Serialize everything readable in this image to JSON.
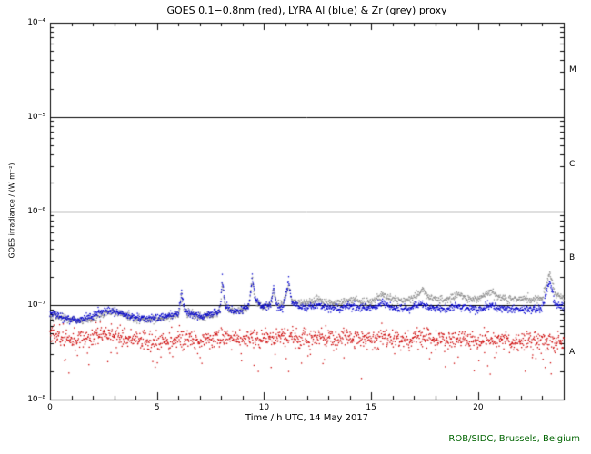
{
  "footer": {
    "credit": "ROB/SIDC, Brussels, Belgium",
    "credit_color": "#006400"
  },
  "chart_data": {
    "type": "scatter",
    "title": "GOES 0.1−0.8nm (red), LYRA Al (blue) & Zr (grey) proxy",
    "xlabel": "Time / h UTC, 14 May 2017",
    "ylabel": "GOES irradiance / (W m⁻²)",
    "x_range": [
      0,
      24
    ],
    "y_log10_range": [
      -8,
      -4
    ],
    "grid": false,
    "x_minor_step": 1,
    "x_major_ticks": [
      {
        "x": 0,
        "label": "0"
      },
      {
        "x": 5,
        "label": "5"
      },
      {
        "x": 10,
        "label": "10"
      },
      {
        "x": 15,
        "label": "15"
      },
      {
        "x": 20,
        "label": "20"
      }
    ],
    "y_ticks": [
      {
        "log10": -8,
        "label": "10⁻⁸"
      },
      {
        "log10": -7,
        "label": "10⁻⁷"
      },
      {
        "log10": -6,
        "label": "10⁻⁶"
      },
      {
        "log10": -5,
        "label": "10⁻⁵"
      },
      {
        "log10": -4,
        "label": "10⁻⁴"
      }
    ],
    "hlines_log10": [
      -5,
      -6,
      -7
    ],
    "flare_classes": [
      {
        "label": "M",
        "log10_range": [
          -5,
          -4
        ]
      },
      {
        "label": "C",
        "log10_range": [
          -6,
          -5
        ]
      },
      {
        "label": "B",
        "log10_range": [
          -7,
          -6
        ]
      },
      {
        "label": "A",
        "log10_range": [
          -8,
          -7
        ]
      }
    ],
    "samples_per_hour": 60,
    "dot_size": 1.3,
    "series": [
      {
        "name": "LYRA Zr proxy",
        "color": "#8f8f8f",
        "noise_sigma_log10": 0.02,
        "points": [
          [
            0,
            7.9e-08
          ],
          [
            0.5,
            7.5e-08
          ],
          [
            1,
            7e-08
          ],
          [
            1.5,
            6.8e-08
          ],
          [
            2,
            7.2e-08
          ],
          [
            2.5,
            8e-08
          ],
          [
            3,
            8.5e-08
          ],
          [
            3.5,
            7.8e-08
          ],
          [
            4,
            7.2e-08
          ],
          [
            4.5,
            7e-08
          ],
          [
            5,
            7.2e-08
          ],
          [
            5.5,
            7.5e-08
          ],
          [
            6.0,
            7.9e-08
          ],
          [
            6.15,
            1.25e-07
          ],
          [
            6.3,
            8.4e-08
          ],
          [
            6.8,
            7.7e-08
          ],
          [
            7.3,
            7.6e-08
          ],
          [
            7.8,
            8e-08
          ],
          [
            7.95,
            8.8e-08
          ],
          [
            8.05,
            1.65e-07
          ],
          [
            8.2,
            9.6e-08
          ],
          [
            8.6,
            8.5e-08
          ],
          [
            9,
            8.9e-08
          ],
          [
            9.3,
            9.6e-08
          ],
          [
            9.45,
            1.9e-07
          ],
          [
            9.6,
            1.1e-07
          ],
          [
            9.9,
            9.7e-08
          ],
          [
            10.3,
            1.02e-07
          ],
          [
            10.45,
            1.42e-07
          ],
          [
            10.6,
            1.03e-07
          ],
          [
            10.9,
            1e-07
          ],
          [
            11.15,
            1.65e-07
          ],
          [
            11.3,
            1.12e-07
          ],
          [
            11.6,
            1.05e-07
          ],
          [
            12,
            1.06e-07
          ],
          [
            12.5,
            1.14e-07
          ],
          [
            13,
            1.05e-07
          ],
          [
            13.5,
            1.06e-07
          ],
          [
            14,
            1.16e-07
          ],
          [
            14.4,
            1.1e-07
          ],
          [
            15,
            1.08e-07
          ],
          [
            15.6,
            1.32e-07
          ],
          [
            15.9,
            1.16e-07
          ],
          [
            16.4,
            1.12e-07
          ],
          [
            16.9,
            1.14e-07
          ],
          [
            17.4,
            1.48e-07
          ],
          [
            17.7,
            1.22e-07
          ],
          [
            18.2,
            1.14e-07
          ],
          [
            18.7,
            1.16e-07
          ],
          [
            19.05,
            1.34e-07
          ],
          [
            19.4,
            1.2e-07
          ],
          [
            20,
            1.14e-07
          ],
          [
            20.6,
            1.44e-07
          ],
          [
            20.9,
            1.22e-07
          ],
          [
            21.4,
            1.14e-07
          ],
          [
            22,
            1.18e-07
          ],
          [
            22.5,
            1.14e-07
          ],
          [
            23,
            1.2e-07
          ],
          [
            23.35,
            2.25e-07
          ],
          [
            23.6,
            1.3e-07
          ],
          [
            24,
            1.22e-07
          ]
        ]
      },
      {
        "name": "LYRA Al proxy",
        "color": "#0000cc",
        "noise_sigma_log10": 0.02,
        "points": [
          [
            0,
            8.2e-08
          ],
          [
            0.3,
            7.9e-08
          ],
          [
            0.8,
            7.1e-08
          ],
          [
            1.3,
            6.9e-08
          ],
          [
            1.8,
            7.4e-08
          ],
          [
            2.3,
            8.3e-08
          ],
          [
            2.7,
            8.9e-08
          ],
          [
            3.2,
            8.5e-08
          ],
          [
            3.7,
            7.7e-08
          ],
          [
            4.2,
            7.3e-08
          ],
          [
            4.7,
            7.3e-08
          ],
          [
            5.2,
            7.6e-08
          ],
          [
            5.7,
            7.9e-08
          ],
          [
            6.0,
            8.2e-08
          ],
          [
            6.15,
            1.35e-07
          ],
          [
            6.3,
            8.8e-08
          ],
          [
            6.7,
            7.9e-08
          ],
          [
            7.2,
            7.8e-08
          ],
          [
            7.6,
            8.1e-08
          ],
          [
            7.95,
            9e-08
          ],
          [
            8.05,
            1.85e-07
          ],
          [
            8.2,
            1e-07
          ],
          [
            8.5,
            8.6e-08
          ],
          [
            8.9,
            8.9e-08
          ],
          [
            9.3,
            9.8e-08
          ],
          [
            9.45,
            2.1e-07
          ],
          [
            9.6,
            1.15e-07
          ],
          [
            9.9,
            9.6e-08
          ],
          [
            10.3,
            1e-07
          ],
          [
            10.45,
            1.55e-07
          ],
          [
            10.6,
            1e-07
          ],
          [
            10.9,
            9.6e-08
          ],
          [
            11.15,
            1.8e-07
          ],
          [
            11.3,
            1.1e-07
          ],
          [
            11.6,
            9.8e-08
          ],
          [
            12,
            9.5e-08
          ],
          [
            12.5,
            1.02e-07
          ],
          [
            13,
            9.4e-08
          ],
          [
            13.5,
            9.2e-08
          ],
          [
            14,
            9.8e-08
          ],
          [
            14.5,
            9.4e-08
          ],
          [
            15,
            9.2e-08
          ],
          [
            15.6,
            1.05e-07
          ],
          [
            15.8,
            9.8e-08
          ],
          [
            16.3,
            9.3e-08
          ],
          [
            16.8,
            9.2e-08
          ],
          [
            17.3,
            1.05e-07
          ],
          [
            17.6,
            9.6e-08
          ],
          [
            18,
            9.2e-08
          ],
          [
            18.5,
            9e-08
          ],
          [
            19,
            9.8e-08
          ],
          [
            19.4,
            9.4e-08
          ],
          [
            20,
            9e-08
          ],
          [
            20.6,
            1e-07
          ],
          [
            21,
            9.4e-08
          ],
          [
            21.5,
            9e-08
          ],
          [
            22,
            9.2e-08
          ],
          [
            22.5,
            9e-08
          ],
          [
            23,
            9.4e-08
          ],
          [
            23.35,
            1.9e-07
          ],
          [
            23.6,
            1e-07
          ],
          [
            24,
            9.6e-08
          ]
        ]
      },
      {
        "name": "GOES 0.1-0.8nm",
        "color": "#cc0000",
        "noise_sigma_log10": 0.05,
        "outliers": {
          "prob": 0.04,
          "shift_log10_min": -0.3,
          "shift_log10_max": -0.12
        },
        "points": [
          [
            0,
            5e-08
          ],
          [
            0.5,
            4.6e-08
          ],
          [
            1,
            4.3e-08
          ],
          [
            1.5,
            4.4e-08
          ],
          [
            2,
            4.6e-08
          ],
          [
            2.5,
            5e-08
          ],
          [
            3,
            4.9e-08
          ],
          [
            3.5,
            4.5e-08
          ],
          [
            4,
            4.3e-08
          ],
          [
            4.5,
            4.2e-08
          ],
          [
            5,
            4.1e-08
          ],
          [
            5.5,
            4.2e-08
          ],
          [
            6,
            4.4e-08
          ],
          [
            6.5,
            4.3e-08
          ],
          [
            7,
            4.2e-08
          ],
          [
            7.5,
            4.3e-08
          ],
          [
            8,
            4.6e-08
          ],
          [
            8.5,
            4.4e-08
          ],
          [
            9,
            4.5e-08
          ],
          [
            9.5,
            4.6e-08
          ],
          [
            10,
            4.4e-08
          ],
          [
            10.5,
            4.5e-08
          ],
          [
            11,
            4.6e-08
          ],
          [
            11.5,
            4.4e-08
          ],
          [
            12,
            4.4e-08
          ],
          [
            12.5,
            4.5e-08
          ],
          [
            13,
            4.3e-08
          ],
          [
            13.5,
            4.3e-08
          ],
          [
            14,
            4.5e-08
          ],
          [
            14.5,
            4.3e-08
          ],
          [
            15,
            4.2e-08
          ],
          [
            15.6,
            4.7e-08
          ],
          [
            16,
            4.4e-08
          ],
          [
            16.5,
            4.3e-08
          ],
          [
            17,
            4.4e-08
          ],
          [
            17.4,
            4.7e-08
          ],
          [
            18,
            4.3e-08
          ],
          [
            18.5,
            4.2e-08
          ],
          [
            19,
            4.5e-08
          ],
          [
            19.5,
            4.3e-08
          ],
          [
            20,
            4.1e-08
          ],
          [
            20.6,
            4.4e-08
          ],
          [
            21,
            4.2e-08
          ],
          [
            21.5,
            4.1e-08
          ],
          [
            22,
            4.2e-08
          ],
          [
            22.5,
            4.1e-08
          ],
          [
            23,
            4.3e-08
          ],
          [
            23.5,
            4.2e-08
          ],
          [
            24,
            4e-08
          ]
        ]
      }
    ]
  }
}
